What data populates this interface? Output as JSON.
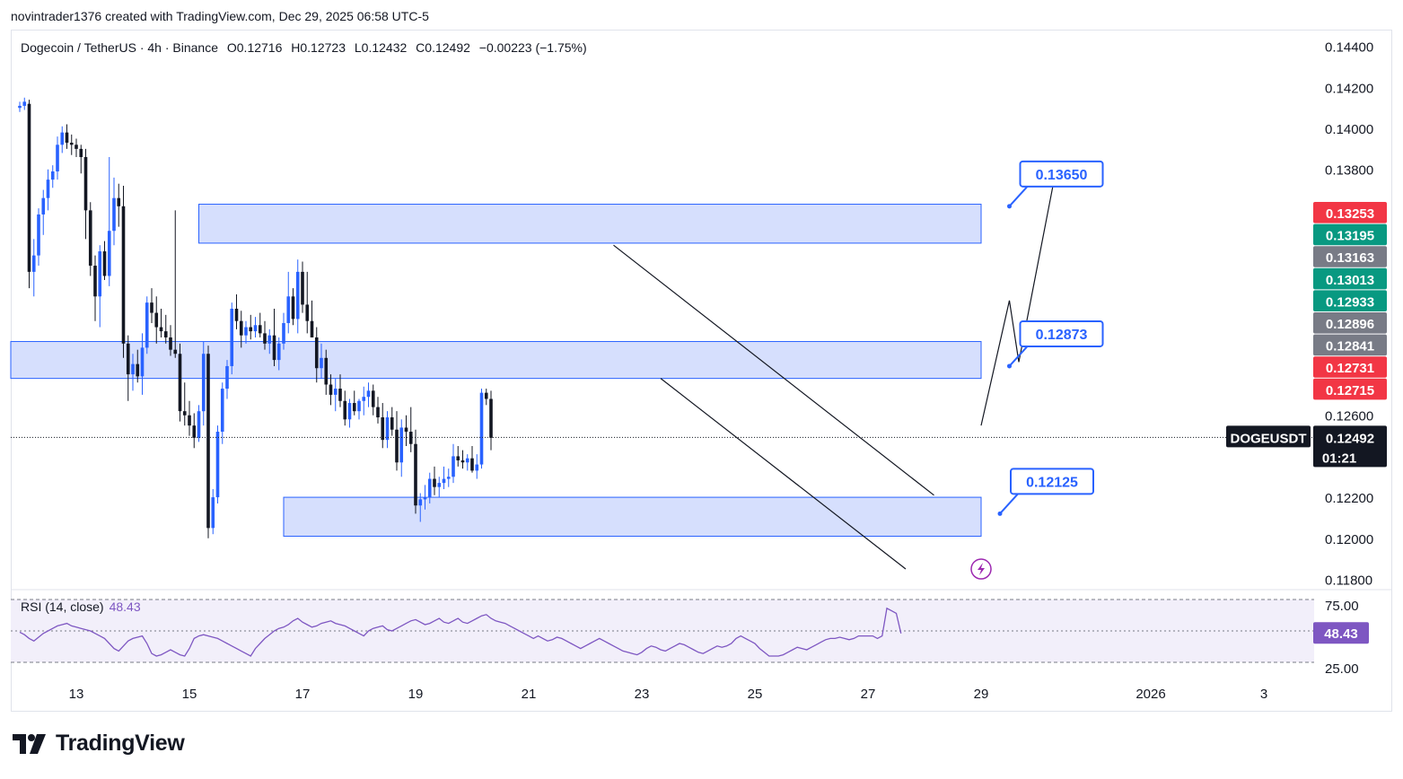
{
  "header": {
    "caption": "novintrader1376 created with TradingView.com, Dec 29, 2025 06:58 UTC-5"
  },
  "symbol": {
    "name": "Dogecoin / TetherUS · 4h · Binance",
    "open": "O0.12716",
    "high": "H0.12723",
    "low": "L0.12432",
    "close": "C0.12492",
    "change": "−0.00223 (−1.75%)",
    "ticker": "DOGEUSDT",
    "countdown": "01:21"
  },
  "rsi": {
    "label": "RSI (14, close)",
    "value": "48.43",
    "levels": [
      "75.00",
      "25.00"
    ]
  },
  "footer": {
    "brand": "TradingView"
  },
  "colors": {
    "up": "#2962ff",
    "down": "#131722",
    "zone_fill": "#d1dcfd",
    "zone_stroke": "#2962ff",
    "rsi_line": "#7e57c2",
    "rsi_band": "#f2effa",
    "tag_red": "#f23645",
    "tag_green": "#089981",
    "tag_gray": "#787b86",
    "tag_black": "#131722"
  },
  "chart_data": {
    "type": "candlestick",
    "title": "Dogecoin / TetherUS · 4h · Binance",
    "ylim": [
      0.1178,
      0.1446
    ],
    "y_ticks": [
      "0.14400",
      "0.14200",
      "0.14000",
      "0.13800",
      "0.12600",
      "0.12200",
      "0.12000",
      "0.11800"
    ],
    "x_ticks": [
      "13",
      "15",
      "17",
      "19",
      "21",
      "23",
      "25",
      "27",
      "29",
      "2026",
      "3"
    ],
    "x_tick_index": [
      12,
      36,
      60,
      84,
      108,
      132,
      156,
      180,
      204,
      240,
      264
    ],
    "candles": [
      [
        0.141,
        0.1413,
        0.1408,
        0.1411
      ],
      [
        0.1411,
        0.1415,
        0.1409,
        0.1413
      ],
      [
        0.1412,
        0.1414,
        0.1322,
        0.133
      ],
      [
        0.133,
        0.1346,
        0.1318,
        0.1338
      ],
      [
        0.1338,
        0.1361,
        0.1333,
        0.1358
      ],
      [
        0.1358,
        0.137,
        0.1348,
        0.1366
      ],
      [
        0.1366,
        0.138,
        0.136,
        0.1375
      ],
      [
        0.1375,
        0.1382,
        0.1371,
        0.1379
      ],
      [
        0.1379,
        0.1396,
        0.1375,
        0.1392
      ],
      [
        0.1392,
        0.1401,
        0.1388,
        0.1398
      ],
      [
        0.1398,
        0.1402,
        0.139,
        0.1393
      ],
      [
        0.1393,
        0.1397,
        0.1387,
        0.1392
      ],
      [
        0.1392,
        0.1395,
        0.1386,
        0.139
      ],
      [
        0.139,
        0.1392,
        0.1378,
        0.1386
      ],
      [
        0.1386,
        0.139,
        0.1346,
        0.136
      ],
      [
        0.136,
        0.1364,
        0.1328,
        0.1333
      ],
      [
        0.1333,
        0.1338,
        0.1306,
        0.1318
      ],
      [
        0.1318,
        0.1343,
        0.1303,
        0.134
      ],
      [
        0.134,
        0.1345,
        0.1326,
        0.1328
      ],
      [
        0.1328,
        0.1386,
        0.1323,
        0.135
      ],
      [
        0.135,
        0.1376,
        0.1343,
        0.1366
      ],
      [
        0.1366,
        0.1373,
        0.1352,
        0.1362
      ],
      [
        0.1362,
        0.1372,
        0.1288,
        0.1295
      ],
      [
        0.1295,
        0.1299,
        0.1267,
        0.128
      ],
      [
        0.128,
        0.129,
        0.1272,
        0.1285
      ],
      [
        0.1285,
        0.1292,
        0.1276,
        0.1279
      ],
      [
        0.1279,
        0.13,
        0.127,
        0.1293
      ],
      [
        0.1293,
        0.1318,
        0.129,
        0.1315
      ],
      [
        0.1315,
        0.1322,
        0.1305,
        0.131
      ],
      [
        0.131,
        0.1318,
        0.1295,
        0.1303
      ],
      [
        0.1303,
        0.1312,
        0.1298,
        0.1301
      ],
      [
        0.1301,
        0.1309,
        0.1295,
        0.1298
      ],
      [
        0.1298,
        0.1304,
        0.1289,
        0.1292
      ],
      [
        0.1292,
        0.136,
        0.1288,
        0.129
      ],
      [
        0.129,
        0.1295,
        0.1257,
        0.1262
      ],
      [
        0.1262,
        0.1276,
        0.1255,
        0.126
      ],
      [
        0.126,
        0.1267,
        0.125,
        0.1255
      ],
      [
        0.1255,
        0.1261,
        0.1244,
        0.1249
      ],
      [
        0.1249,
        0.1265,
        0.1247,
        0.1262
      ],
      [
        0.1262,
        0.1296,
        0.1255,
        0.129
      ],
      [
        0.129,
        0.1294,
        0.12,
        0.1205
      ],
      [
        0.1205,
        0.1224,
        0.1202,
        0.122
      ],
      [
        0.122,
        0.1255,
        0.1217,
        0.1252
      ],
      [
        0.1252,
        0.1276,
        0.1246,
        0.1273
      ],
      [
        0.1273,
        0.1287,
        0.1268,
        0.1284
      ],
      [
        0.1284,
        0.1315,
        0.128,
        0.1312
      ],
      [
        0.1312,
        0.1319,
        0.1302,
        0.1306
      ],
      [
        0.1306,
        0.1311,
        0.1293,
        0.1299
      ],
      [
        0.1299,
        0.1306,
        0.1295,
        0.1303
      ],
      [
        0.1303,
        0.1309,
        0.1297,
        0.1301
      ],
      [
        0.1301,
        0.1308,
        0.1298,
        0.1304
      ],
      [
        0.1304,
        0.131,
        0.1298,
        0.13
      ],
      [
        0.13,
        0.1306,
        0.1292,
        0.1295
      ],
      [
        0.1295,
        0.1302,
        0.129,
        0.1299
      ],
      [
        0.1299,
        0.1312,
        0.1284,
        0.1287
      ],
      [
        0.1287,
        0.1298,
        0.1282,
        0.1295
      ],
      [
        0.1295,
        0.131,
        0.1292,
        0.1305
      ],
      [
        0.1305,
        0.133,
        0.13,
        0.1318
      ],
      [
        0.1318,
        0.1322,
        0.1304,
        0.1307
      ],
      [
        0.1307,
        0.1336,
        0.13,
        0.133
      ],
      [
        0.133,
        0.1335,
        0.131,
        0.1314
      ],
      [
        0.1314,
        0.133,
        0.13,
        0.1306
      ],
      [
        0.1306,
        0.1316,
        0.1298,
        0.1298
      ],
      [
        0.1298,
        0.1303,
        0.1276,
        0.1283
      ],
      [
        0.1283,
        0.1295,
        0.1278,
        0.1288
      ],
      [
        0.1288,
        0.1292,
        0.127,
        0.1275
      ],
      [
        0.1275,
        0.128,
        0.1265,
        0.127
      ],
      [
        0.127,
        0.1278,
        0.1262,
        0.1273
      ],
      [
        0.1273,
        0.128,
        0.1264,
        0.1267
      ],
      [
        0.1267,
        0.1272,
        0.1255,
        0.1258
      ],
      [
        0.1258,
        0.1268,
        0.1254,
        0.1266
      ],
      [
        0.1266,
        0.1272,
        0.126,
        0.1262
      ],
      [
        0.1262,
        0.1268,
        0.1258,
        0.1267
      ],
      [
        0.1267,
        0.1274,
        0.126,
        0.1269
      ],
      [
        0.1269,
        0.1276,
        0.1264,
        0.1272
      ],
      [
        0.1272,
        0.1275,
        0.126,
        0.1264
      ],
      [
        0.1264,
        0.1269,
        0.1256,
        0.1259
      ],
      [
        0.1259,
        0.1266,
        0.1244,
        0.1248
      ],
      [
        0.1248,
        0.1262,
        0.1244,
        0.1259
      ],
      [
        0.1259,
        0.1264,
        0.125,
        0.1253
      ],
      [
        0.1253,
        0.1262,
        0.1233,
        0.1237
      ],
      [
        0.1237,
        0.1258,
        0.123,
        0.1254
      ],
      [
        0.1254,
        0.126,
        0.1245,
        0.1252
      ],
      [
        0.1252,
        0.1264,
        0.1242,
        0.1246
      ],
      [
        0.1246,
        0.1253,
        0.1212,
        0.1216
      ],
      [
        0.1216,
        0.1222,
        0.1208,
        0.1219
      ],
      [
        0.1219,
        0.1226,
        0.1214,
        0.122
      ],
      [
        0.122,
        0.1232,
        0.1217,
        0.1229
      ],
      [
        0.1229,
        0.1235,
        0.1221,
        0.1225
      ],
      [
        0.1225,
        0.123,
        0.122,
        0.1227
      ],
      [
        0.1227,
        0.1235,
        0.1224,
        0.1229
      ],
      [
        0.1229,
        0.1234,
        0.1225,
        0.123
      ],
      [
        0.123,
        0.1246,
        0.1227,
        0.124
      ],
      [
        0.124,
        0.1245,
        0.1235,
        0.1238
      ],
      [
        0.1238,
        0.1243,
        0.1234,
        0.1237
      ],
      [
        0.1237,
        0.1241,
        0.1233,
        0.1239
      ],
      [
        0.1239,
        0.1245,
        0.1232,
        0.1233
      ],
      [
        0.1233,
        0.1241,
        0.1229,
        0.1236
      ],
      [
        0.1236,
        0.1273,
        0.1234,
        0.1271
      ],
      [
        0.1271,
        0.1273,
        0.1265,
        0.1268
      ],
      [
        0.1268,
        0.1272,
        0.1243,
        0.1249
      ]
    ],
    "zones": [
      {
        "from_index": 38,
        "to_index": 204,
        "low": 0.1344,
        "high": 0.1363
      },
      {
        "from_index": 0,
        "to_index": 204,
        "low": 0.1278,
        "high": 0.1296
      },
      {
        "from_index": 56,
        "to_index": 204,
        "low": 0.1201,
        "high": 0.122
      }
    ],
    "channel_lines": [
      {
        "from": [
          126,
          0.1343
        ],
        "to": [
          194,
          0.1221
        ]
      },
      {
        "from": [
          136,
          0.1278
        ],
        "to": [
          188,
          0.1185
        ]
      }
    ],
    "projection_path": [
      [
        204,
        0.1255
      ],
      [
        210,
        0.1316
      ],
      [
        212,
        0.1286
      ],
      [
        220,
        0.1381
      ]
    ],
    "annotations": [
      {
        "label": "0.13650",
        "anchor_index": 210,
        "anchor_price": 0.1362
      },
      {
        "label": "0.12873",
        "anchor_index": 210,
        "anchor_price": 0.1284
      },
      {
        "label": "0.12125",
        "anchor_index": 208,
        "anchor_price": 0.1212
      }
    ],
    "price_tags": [
      {
        "text": "0.13253",
        "value": 0.13253,
        "color": "red"
      },
      {
        "text": "0.13195",
        "value": 0.13195,
        "color": "green"
      },
      {
        "text": "0.13163",
        "value": 0.13163,
        "color": "gray"
      },
      {
        "text": "0.13013",
        "value": 0.13013,
        "color": "green"
      },
      {
        "text": "0.12933",
        "value": 0.12933,
        "color": "green"
      },
      {
        "text": "0.12896",
        "value": 0.12896,
        "color": "gray"
      },
      {
        "text": "0.12841",
        "value": 0.12841,
        "color": "gray"
      },
      {
        "text": "0.12731",
        "value": 0.12731,
        "color": "red"
      },
      {
        "text": "0.12715",
        "value": 0.12715,
        "color": "red"
      }
    ],
    "last_price": {
      "text": "0.12492",
      "value": 0.12492
    },
    "rsi_series": [
      49,
      47,
      44,
      42,
      45,
      48,
      50,
      52,
      54,
      55,
      56,
      54,
      53,
      52,
      51,
      50,
      48,
      46,
      44,
      40,
      36,
      34,
      38,
      42,
      44,
      45,
      46,
      40,
      32,
      30,
      31,
      33,
      35,
      33,
      31,
      30,
      36,
      44,
      46,
      47,
      46,
      45,
      44,
      42,
      40,
      38,
      36,
      34,
      32,
      30,
      36,
      40,
      44,
      47,
      50,
      52,
      53,
      55,
      58,
      60,
      57,
      55,
      53,
      54,
      56,
      57,
      58,
      56,
      55,
      54,
      52,
      50,
      48,
      46,
      50,
      52,
      53,
      54,
      51,
      50,
      52,
      54,
      56,
      58,
      59,
      57,
      55,
      56,
      58,
      60,
      57,
      56,
      58,
      60,
      57,
      56,
      58,
      60,
      62,
      63,
      60,
      58,
      57,
      56,
      54,
      52,
      50,
      48,
      46,
      44,
      46,
      44,
      42,
      43,
      45,
      44,
      42,
      40,
      38,
      36,
      38,
      40,
      42,
      44,
      42,
      40,
      38,
      36,
      34,
      33,
      32,
      31,
      33,
      36,
      38,
      37,
      35,
      34,
      36,
      38,
      40,
      39,
      37,
      35,
      33,
      32,
      34,
      36,
      38,
      37,
      38,
      40,
      44,
      46,
      44,
      42,
      40,
      36,
      33,
      30,
      30,
      30,
      31,
      33,
      35,
      37,
      36,
      35,
      37,
      39,
      41,
      43,
      44,
      44,
      45,
      44,
      43,
      44,
      46,
      46,
      46,
      46,
      44,
      46,
      68,
      66,
      64,
      48
    ]
  }
}
